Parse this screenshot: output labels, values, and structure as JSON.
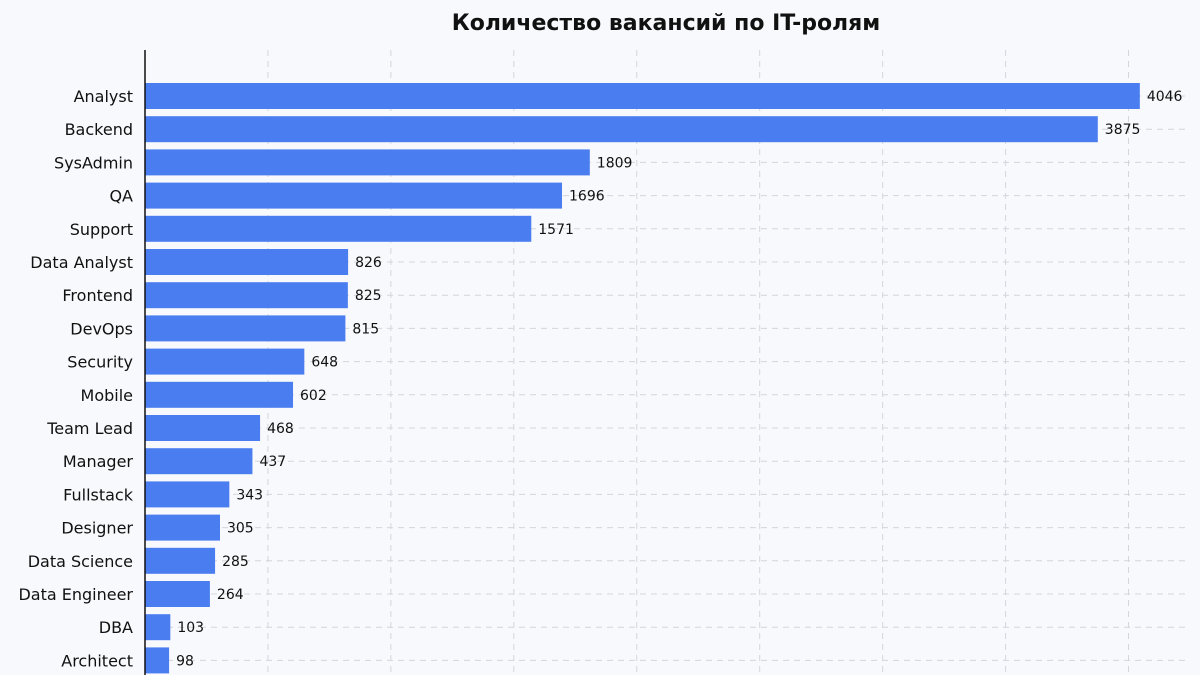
{
  "chart_data": {
    "type": "bar",
    "orientation": "horizontal",
    "title": "Количество вакансий по IT-ролям",
    "xlabel": "",
    "ylabel": "",
    "categories": [
      "Analyst",
      "Backend",
      "SysAdmin",
      "QA",
      "Support",
      "Data Analyst",
      "Frontend",
      "DevOps",
      "Security",
      "Mobile",
      "Team Lead",
      "Manager",
      "Fullstack",
      "Designer",
      "Data Science",
      "Data Engineer",
      "DBA",
      "Architect"
    ],
    "values": [
      4046,
      3875,
      1809,
      1696,
      1571,
      826,
      825,
      815,
      648,
      602,
      468,
      437,
      343,
      305,
      285,
      264,
      103,
      98
    ],
    "xlim": [
      0,
      4250
    ],
    "grid": true,
    "bar_color": "#4a7ef0",
    "data_labels": true
  }
}
